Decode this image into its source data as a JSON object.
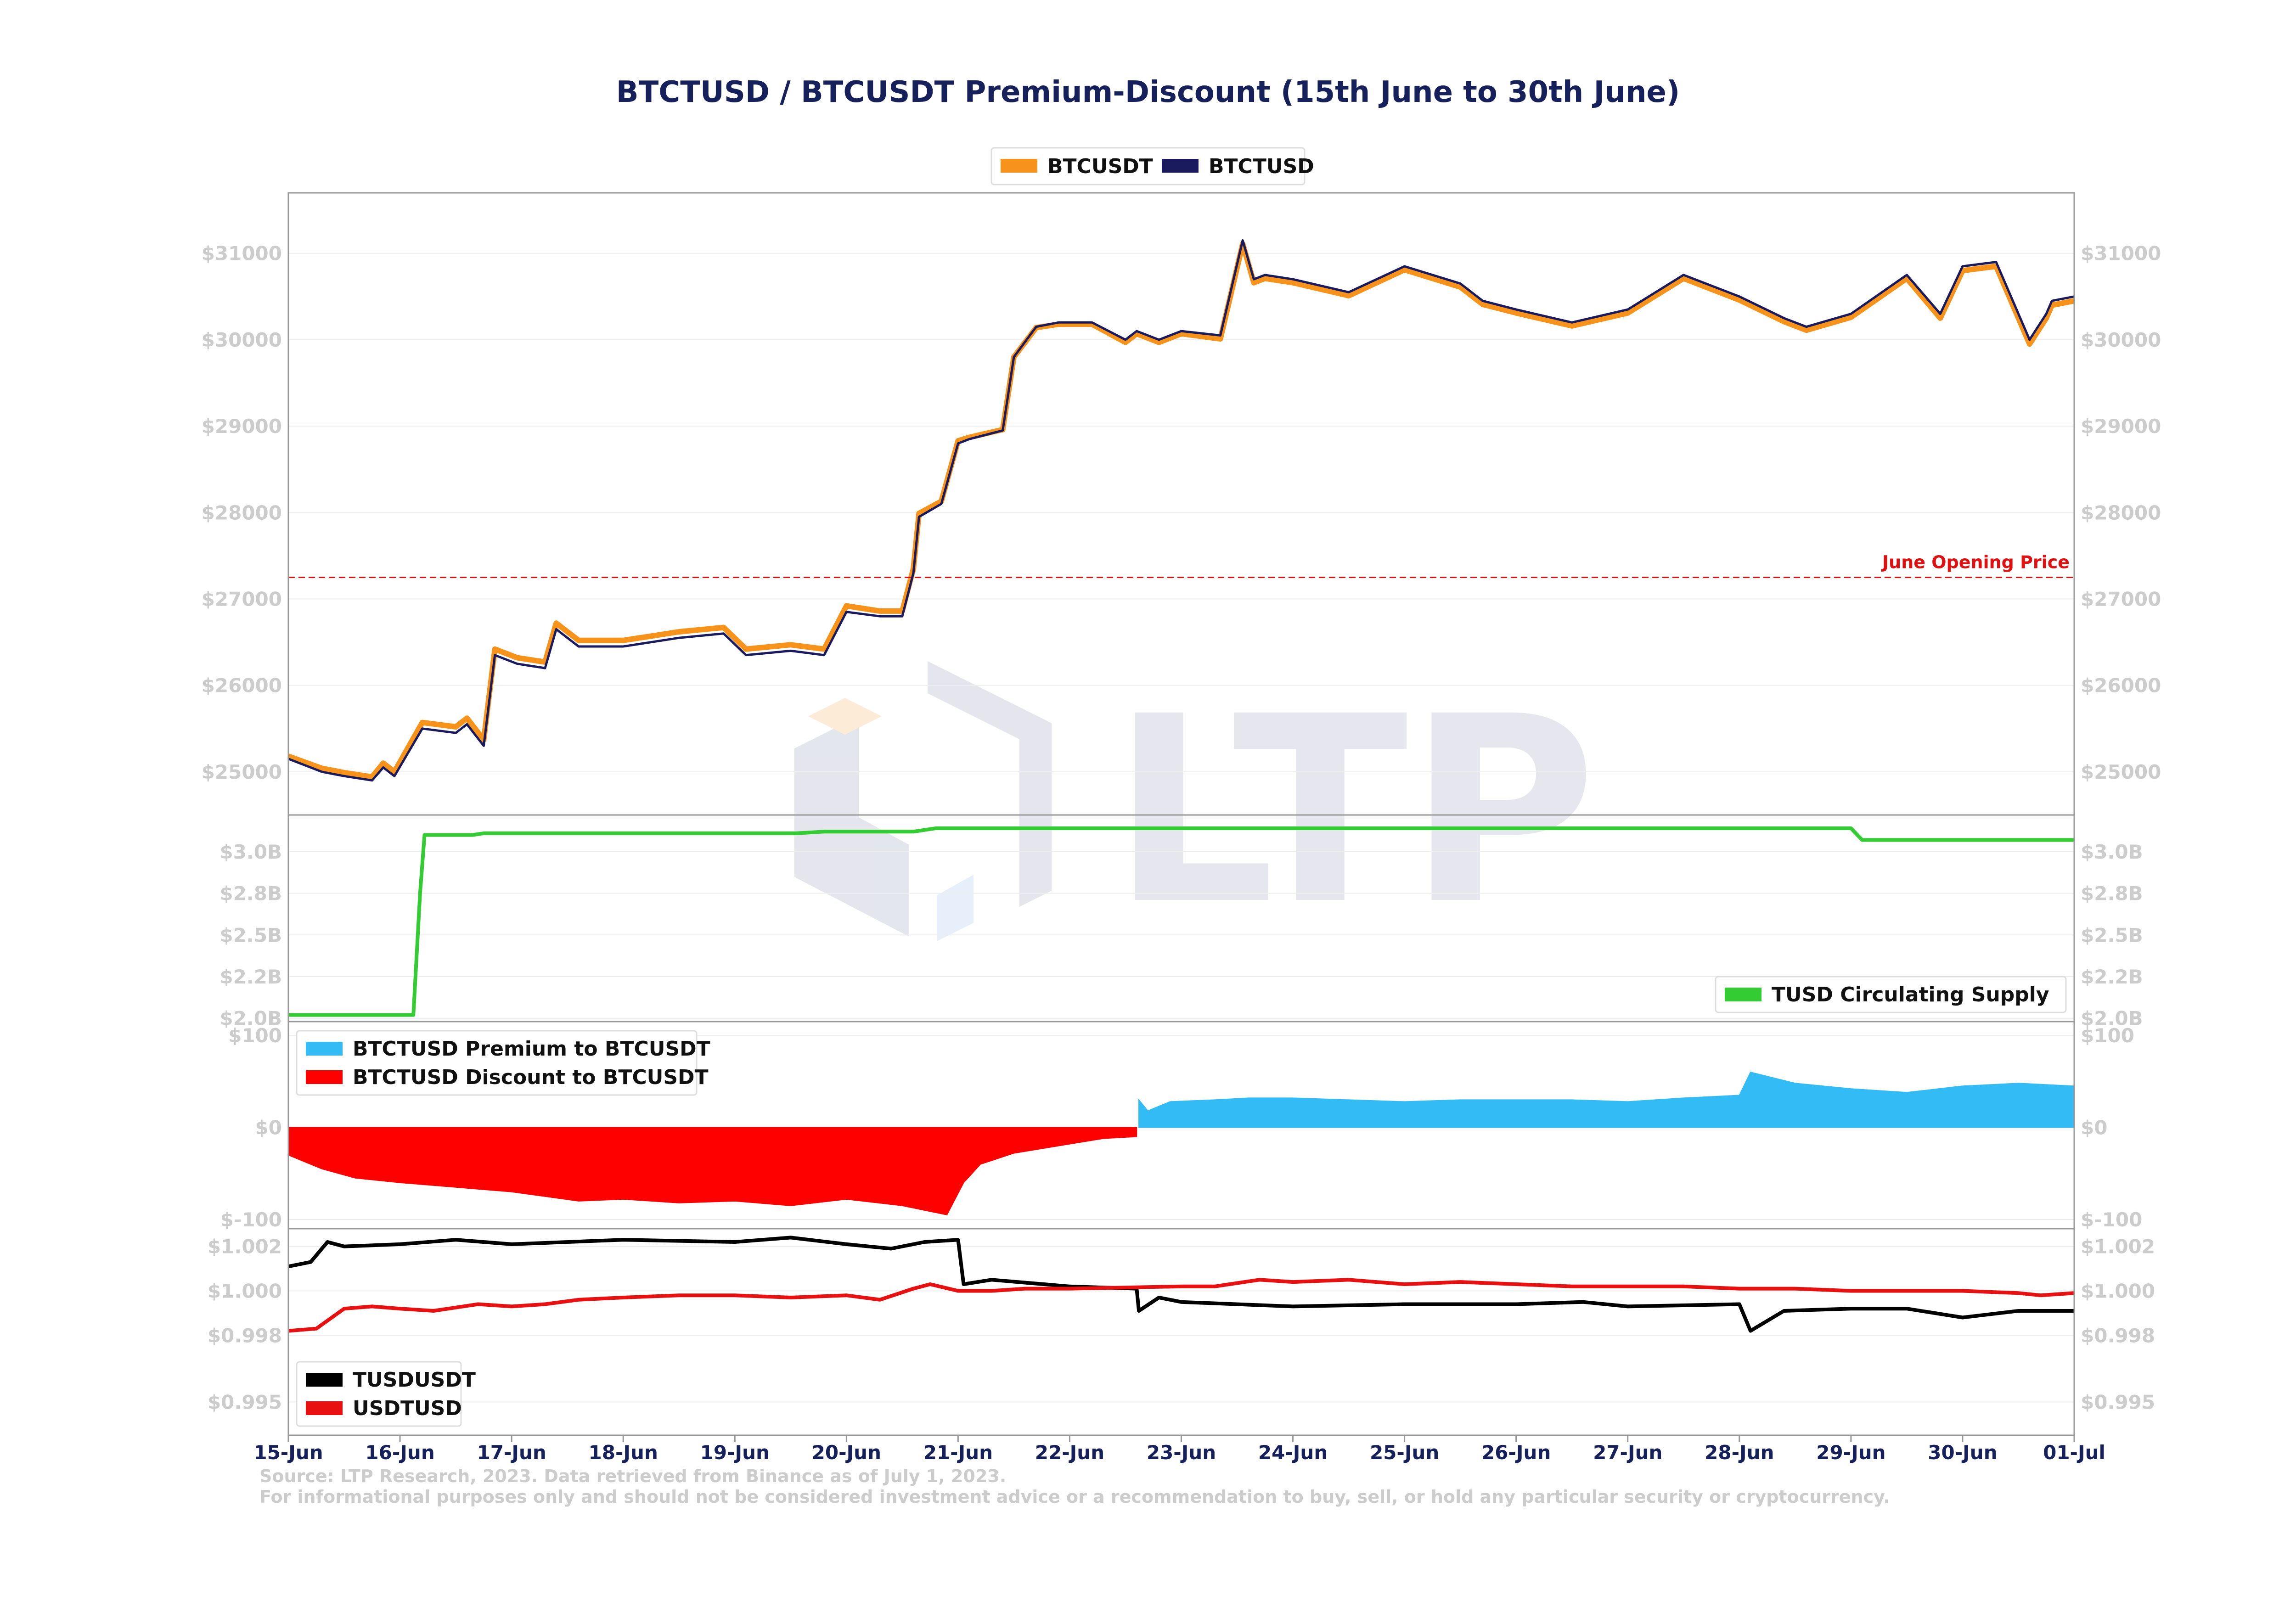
{
  "colors": {
    "btcusdt": "#f7931a",
    "btctusd": "#1a1a5e",
    "tusd_supply": "#33cc33",
    "premium": "#33bbf5",
    "discount": "#ff0000",
    "tusdusdt": "#000000",
    "usdtusd": "#e81010",
    "opening_line": "#e01010",
    "title": "#16205a",
    "tick_text": "#cccccc"
  },
  "chart_data": {
    "title": "BTCTUSD / BTCUSDT Premium-Discount (15th June to 30th June)",
    "x_ticks": [
      "15-Jun",
      "16-Jun",
      "17-Jun",
      "18-Jun",
      "19-Jun",
      "20-Jun",
      "21-Jun",
      "22-Jun",
      "23-Jun",
      "24-Jun",
      "25-Jun",
      "26-Jun",
      "27-Jun",
      "28-Jun",
      "29-Jun",
      "30-Jun",
      "01-Jul"
    ],
    "x_unit": "days since 15-Jun",
    "panels": [
      {
        "id": "price",
        "type": "line",
        "ylim": [
          24500,
          31700
        ],
        "y_ticks": [
          25000,
          26000,
          27000,
          28000,
          29000,
          30000,
          31000
        ],
        "y_tick_labels": [
          "$25000",
          "$26000",
          "$27000",
          "$28000",
          "$29000",
          "$30000",
          "$31000"
        ],
        "legend": {
          "placement": "top-center",
          "entries": [
            "BTCUSDT",
            "BTCTUSD"
          ]
        },
        "annotation": {
          "label": "June Opening Price",
          "y": 27250
        },
        "series": [
          {
            "name": "BTCTUSD",
            "x": [
              0,
              0.3,
              0.5,
              0.75,
              0.85,
              0.95,
              1.2,
              1.5,
              1.6,
              1.75,
              1.85,
              2.05,
              2.3,
              2.4,
              2.6,
              3.0,
              3.5,
              3.9,
              4.1,
              4.5,
              4.8,
              5.0,
              5.3,
              5.5,
              5.6,
              5.65,
              5.85,
              6.0,
              6.1,
              6.4,
              6.5,
              6.7,
              6.9,
              7.2,
              7.5,
              7.6,
              7.8,
              8.0,
              8.35,
              8.55,
              8.65,
              8.75,
              9.0,
              9.5,
              10.0,
              10.5,
              10.7,
              11.0,
              11.5,
              12.0,
              12.5,
              13.0,
              13.4,
              13.6,
              14.0,
              14.5,
              14.8,
              15.0,
              15.3,
              15.6,
              15.75,
              15.8,
              16.0
            ],
            "values": [
              25150,
              25000,
              24950,
              24900,
              25050,
              24950,
              25500,
              25450,
              25550,
              25300,
              26350,
              26250,
              26200,
              26650,
              26450,
              26450,
              26550,
              26600,
              26350,
              26400,
              26350,
              26850,
              26800,
              26800,
              27300,
              27950,
              28100,
              28800,
              28850,
              28950,
              29800,
              30150,
              30200,
              30200,
              30000,
              30100,
              30000,
              30100,
              30050,
              31150,
              30700,
              30750,
              30700,
              30550,
              30850,
              30650,
              30450,
              30350,
              30200,
              30350,
              30750,
              30500,
              30250,
              30150,
              30300,
              30750,
              30300,
              30850,
              30900,
              30000,
              30300,
              30450,
              30500
            ]
          },
          {
            "name": "BTCUSDT",
            "x": [
              0,
              0.3,
              0.5,
              0.75,
              0.85,
              0.95,
              1.2,
              1.5,
              1.6,
              1.75,
              1.85,
              2.05,
              2.3,
              2.4,
              2.6,
              3.0,
              3.5,
              3.9,
              4.1,
              4.5,
              4.8,
              5.0,
              5.3,
              5.5,
              5.6,
              5.65,
              5.85,
              6.0,
              6.1,
              6.4,
              6.5,
              6.7,
              6.9,
              7.2,
              7.5,
              7.6,
              7.8,
              8.0,
              8.35,
              8.55,
              8.65,
              8.75,
              9.0,
              9.5,
              10.0,
              10.5,
              10.7,
              11.0,
              11.5,
              12.0,
              12.5,
              13.0,
              13.4,
              13.6,
              14.0,
              14.5,
              14.8,
              15.0,
              15.3,
              15.6,
              15.75,
              15.8,
              16.0
            ],
            "values": [
              25180,
              25040,
              24990,
              24940,
              25100,
              25000,
              25570,
              25520,
              25620,
              25370,
              26420,
              26320,
              26270,
              26720,
              26520,
              26520,
              26620,
              26670,
              26420,
              26470,
              26420,
              26920,
              26860,
              26860,
              27350,
              27990,
              28130,
              28830,
              28870,
              28960,
              29800,
              30140,
              30180,
              30180,
              29970,
              30070,
              29970,
              30070,
              30010,
              31110,
              30660,
              30710,
              30660,
              30510,
              30810,
              30610,
              30410,
              30310,
              30160,
              30310,
              30710,
              30460,
              30210,
              30110,
              30260,
              30710,
              30250,
              30800,
              30850,
              29950,
              30250,
              30400,
              30450
            ]
          }
        ]
      },
      {
        "id": "supply",
        "type": "line",
        "ylim": [
          1.98,
          3.22
        ],
        "y_ticks": [
          2.0,
          2.25,
          2.5,
          2.75,
          3.0
        ],
        "y_tick_labels": [
          "$2.0B",
          "$2.2B",
          "$2.5B",
          "$2.8B",
          "$3.0B"
        ],
        "legend": {
          "placement": "bottom-right",
          "entries": [
            "TUSD Circulating Supply"
          ]
        },
        "series": [
          {
            "name": "TUSD Circulating Supply",
            "x": [
              0,
              1.12,
              1.18,
              1.22,
              1.65,
              1.75,
              4.55,
              4.8,
              5.6,
              5.8,
              14.0,
              14.1,
              16.0
            ],
            "values": [
              2.02,
              2.02,
              2.75,
              3.1,
              3.1,
              3.11,
              3.11,
              3.12,
              3.12,
              3.14,
              3.14,
              3.07,
              3.07
            ]
          }
        ]
      },
      {
        "id": "premium",
        "type": "area",
        "ylim": [
          -110,
          115
        ],
        "y_ticks": [
          -100,
          0,
          100
        ],
        "y_tick_labels": [
          "$-100",
          "$0",
          "$100"
        ],
        "legend": {
          "placement": "top-left",
          "entries": [
            "BTCTUSD Premium to BTCUSDT",
            "BTCTUSD Discount to BTCUSDT"
          ]
        },
        "series": [
          {
            "name": "BTCTUSD Premium to BTCUSDT",
            "x": [
              7.62,
              7.7,
              7.9,
              8.3,
              8.6,
              9.0,
              9.5,
              10.0,
              10.5,
              11.0,
              11.5,
              12.0,
              12.5,
              13.0,
              13.1,
              13.5,
              14.0,
              14.5,
              15.0,
              15.5,
              16.0
            ],
            "values": [
              30,
              18,
              28,
              30,
              32,
              32,
              30,
              28,
              30,
              30,
              30,
              28,
              32,
              35,
              60,
              48,
              42,
              38,
              45,
              48,
              45
            ]
          },
          {
            "name": "BTCTUSD Discount to BTCUSDT",
            "x": [
              0,
              0.3,
              0.6,
              1.0,
              1.5,
              2.0,
              2.3,
              2.6,
              3.0,
              3.5,
              4.0,
              4.5,
              5.0,
              5.5,
              5.9,
              6.05,
              6.2,
              6.5,
              7.0,
              7.3,
              7.6
            ],
            "values": [
              -30,
              -45,
              -55,
              -60,
              -65,
              -70,
              -75,
              -80,
              -78,
              -82,
              -80,
              -85,
              -78,
              -85,
              -95,
              -60,
              -40,
              -28,
              -18,
              -12,
              -10
            ]
          }
        ]
      },
      {
        "id": "stable",
        "type": "line",
        "ylim": [
          0.9935,
          1.0028
        ],
        "y_ticks": [
          0.995,
          0.998,
          1.0,
          1.002
        ],
        "y_tick_labels": [
          "$0.995",
          "$0.998",
          "$1.000",
          "$1.002"
        ],
        "legend": {
          "placement": "bottom-left",
          "entries": [
            "TUSDUSDT",
            "USDTUSD"
          ]
        },
        "series": [
          {
            "name": "TUSDUSDT",
            "x": [
              0,
              0.2,
              0.35,
              0.5,
              1.0,
              1.5,
              2.0,
              3.0,
              4.0,
              4.5,
              5.0,
              5.4,
              5.7,
              6.0,
              6.05,
              6.3,
              7.0,
              7.6,
              7.62,
              7.8,
              8.0,
              9.0,
              10.0,
              11.0,
              11.6,
              12.0,
              13.0,
              13.1,
              13.4,
              14.0,
              14.5,
              15.0,
              15.5,
              16.0
            ],
            "values": [
              1.0011,
              1.0013,
              1.0022,
              1.002,
              1.0021,
              1.0023,
              1.0021,
              1.0023,
              1.0022,
              1.0024,
              1.0021,
              1.0019,
              1.0022,
              1.0023,
              1.0003,
              1.0005,
              1.0002,
              1.0001,
              0.9991,
              0.9997,
              0.9995,
              0.9993,
              0.9994,
              0.9994,
              0.9995,
              0.9993,
              0.9994,
              0.9982,
              0.9991,
              0.9992,
              0.9992,
              0.9988,
              0.9991,
              0.9991
            ]
          },
          {
            "name": "USDTUSD",
            "x": [
              0,
              0.25,
              0.5,
              0.75,
              1.0,
              1.3,
              1.7,
              2.0,
              2.3,
              2.6,
              3.0,
              3.5,
              4.0,
              4.5,
              5.0,
              5.3,
              5.6,
              5.75,
              6.0,
              6.3,
              6.6,
              7.0,
              8.0,
              8.3,
              8.7,
              9.0,
              9.5,
              10.0,
              10.5,
              11.0,
              11.5,
              12.0,
              12.5,
              13.0,
              13.5,
              14.0,
              14.5,
              15.0,
              15.5,
              15.7,
              16.0
            ],
            "values": [
              0.9982,
              0.9983,
              0.9992,
              0.9993,
              0.9992,
              0.9991,
              0.9994,
              0.9993,
              0.9994,
              0.9996,
              0.9997,
              0.9998,
              0.9998,
              0.9997,
              0.9998,
              0.9996,
              1.0001,
              1.0003,
              1.0,
              1.0,
              1.0001,
              1.0001,
              1.0002,
              1.0002,
              1.0005,
              1.0004,
              1.0005,
              1.0003,
              1.0004,
              1.0003,
              1.0002,
              1.0002,
              1.0002,
              1.0001,
              1.0001,
              1.0,
              1.0,
              1.0,
              0.9999,
              0.9998,
              0.9999
            ]
          }
        ]
      }
    ]
  },
  "watermark": {
    "text": "LTP"
  },
  "footer": {
    "source_line_1": "Source: LTP Research, 2023. Data retrieved from Binance as of July 1, 2023.",
    "source_line_2": "For informational purposes only and should not be considered investment advice or a recommendation to buy, sell, or hold any particular security or cryptocurrency."
  }
}
